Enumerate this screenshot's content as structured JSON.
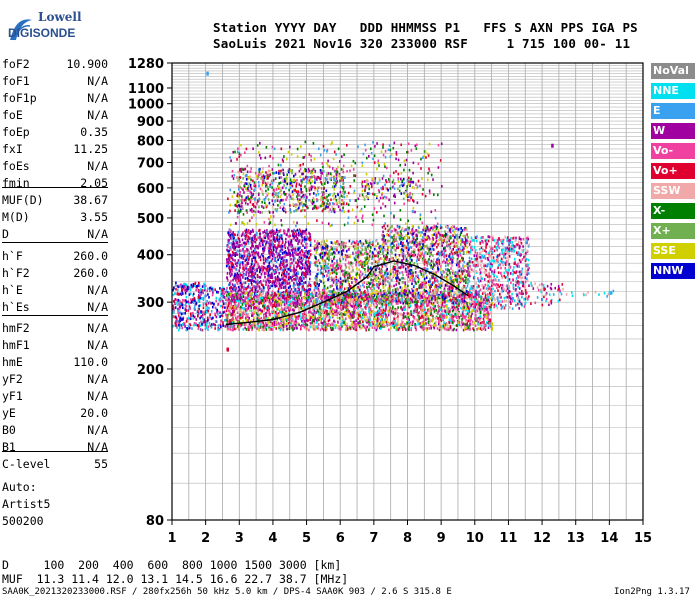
{
  "logo": {
    "line1": "Lowell",
    "line2": "DIGISONDE"
  },
  "header": {
    "line1": "Station YYYY DAY   DDD HHMMSS P1   FFS S AXN PPS IGA PS",
    "line2": "SaoLuis 2021 Nov16 320 233000 RSF     1 715 100 00- 11"
  },
  "params": {
    "group1": [
      {
        "name": "foF2",
        "value": "10.900"
      },
      {
        "name": "foF1",
        "value": "N/A"
      },
      {
        "name": "foF1p",
        "value": "N/A"
      },
      {
        "name": "foE",
        "value": "N/A"
      },
      {
        "name": "foEp",
        "value": "0.35"
      },
      {
        "name": "fxI",
        "value": "11.25"
      },
      {
        "name": "foEs",
        "value": "N/A"
      },
      {
        "name": "fmin",
        "value": "2.05"
      }
    ],
    "group2": [
      {
        "name": "MUF(D)",
        "value": "38.67"
      },
      {
        "name": "M(D)",
        "value": "3.55"
      },
      {
        "name": "D",
        "value": "N/A"
      }
    ],
    "group3": [
      {
        "name": "h`F",
        "value": "260.0"
      },
      {
        "name": "h`F2",
        "value": "260.0"
      },
      {
        "name": "h`E",
        "value": "N/A"
      },
      {
        "name": "h`Es",
        "value": "N/A"
      }
    ],
    "group4": [
      {
        "name": "hmF2",
        "value": "N/A"
      },
      {
        "name": "hmF1",
        "value": "N/A"
      },
      {
        "name": "hmE",
        "value": "110.0"
      },
      {
        "name": "yF2",
        "value": "N/A"
      },
      {
        "name": "yF1",
        "value": "N/A"
      },
      {
        "name": "yE",
        "value": "20.0"
      },
      {
        "name": "B0",
        "value": "N/A"
      },
      {
        "name": "B1",
        "value": "N/A"
      }
    ],
    "group5": [
      {
        "name": "C-level",
        "value": "55"
      }
    ]
  },
  "autoscaling": {
    "line1": "Auto:",
    "line2": "Artist5",
    "line3": "500200"
  },
  "legend": [
    {
      "label": "NoVal",
      "color": "#8c8c8c"
    },
    {
      "label": "NNE",
      "color": "#00e0f0"
    },
    {
      "label": "E",
      "color": "#3aa0f0"
    },
    {
      "label": "W",
      "color": "#a000a0"
    },
    {
      "label": "Vo-",
      "color": "#f040a0"
    },
    {
      "label": "Vo+",
      "color": "#e00030"
    },
    {
      "label": "SSW",
      "color": "#f0a8a8"
    },
    {
      "label": "X-",
      "color": "#008000"
    },
    {
      "label": "X+",
      "color": "#70b050"
    },
    {
      "label": "SSE",
      "color": "#d0d000"
    },
    {
      "label": "NNW",
      "color": "#0000d0"
    }
  ],
  "footer": {
    "line1": "D     100  200  400  600  800 1000 1500 3000 [km]",
    "line2": "MUF  11.3 11.4 12.0 13.1 14.5 16.6 22.7 38.7 [MHz]",
    "line3": "SAA0K_2021320233000.RSF / 280fx256h 50 kHz 5.0 km / DPS-4 SAA0K 903 / 2.6 S 315.8 E",
    "version": "Ion2Png 1.3.17"
  },
  "chart_data": {
    "type": "scatter",
    "xlim": [
      1,
      15
    ],
    "ylim": [
      80,
      1280
    ],
    "x_ticks": [
      1,
      2,
      3,
      4,
      5,
      6,
      7,
      8,
      9,
      10,
      11,
      12,
      13,
      14,
      15
    ],
    "y_ticks": [
      80,
      200,
      300,
      400,
      500,
      600,
      700,
      800,
      900,
      1000,
      1100,
      1280
    ],
    "y_scale": "log",
    "grid": true,
    "trace": {
      "color": "#000000",
      "x": [
        2.6,
        3.2,
        4.0,
        4.8,
        5.5,
        6.2,
        6.8,
        7.0,
        7.6,
        8.2,
        8.8,
        9.4,
        9.8
      ],
      "y": [
        262,
        265,
        270,
        282,
        300,
        320,
        350,
        372,
        385,
        375,
        355,
        330,
        312
      ]
    },
    "echo_regions": [
      {
        "x": [
          1.0,
          2.0
        ],
        "y": [
          255,
          340
        ],
        "density": 1.2,
        "mix": "low"
      },
      {
        "x": [
          2.0,
          2.6
        ],
        "y": [
          255,
          330
        ],
        "density": 0.9,
        "mix": "low"
      },
      {
        "x": [
          2.6,
          5.1
        ],
        "y": [
          300,
          470
        ],
        "density": 1.4,
        "mix": "purple"
      },
      {
        "x": [
          2.6,
          10.5
        ],
        "y": [
          255,
          320
        ],
        "density": 1.6,
        "mix": "pink"
      },
      {
        "x": [
          5.2,
          7.2
        ],
        "y": [
          300,
          440
        ],
        "density": 1.1,
        "mix": "mixed"
      },
      {
        "x": [
          7.2,
          9.8
        ],
        "y": [
          300,
          480
        ],
        "density": 1.2,
        "mix": "mixed"
      },
      {
        "x": [
          9.8,
          11.6
        ],
        "y": [
          290,
          450
        ],
        "density": 0.9,
        "mix": "pinkred"
      },
      {
        "x": [
          11.6,
          12.6
        ],
        "y": [
          295,
          340
        ],
        "density": 0.4,
        "mix": "pinkred"
      },
      {
        "x": [
          12.6,
          14.1
        ],
        "y": [
          312,
          325
        ],
        "density": 0.3,
        "mix": "cyan"
      },
      {
        "x": [
          2.9,
          6.1
        ],
        "y": [
          520,
          680
        ],
        "density": 0.7,
        "mix": "mixed"
      },
      {
        "x": [
          6.6,
          8.2
        ],
        "y": [
          560,
          640
        ],
        "density": 0.5,
        "mix": "mixed"
      },
      {
        "x": [
          2.6,
          9.0
        ],
        "y": [
          480,
          800
        ],
        "density": 0.15,
        "mix": "sparse"
      }
    ],
    "isolated_points": [
      {
        "x": 2.05,
        "y": 1200,
        "color": "#3aa0f0"
      },
      {
        "x": 2.65,
        "y": 225,
        "color": "#e00030"
      },
      {
        "x": 12.3,
        "y": 775,
        "color": "#a000a0"
      }
    ]
  }
}
